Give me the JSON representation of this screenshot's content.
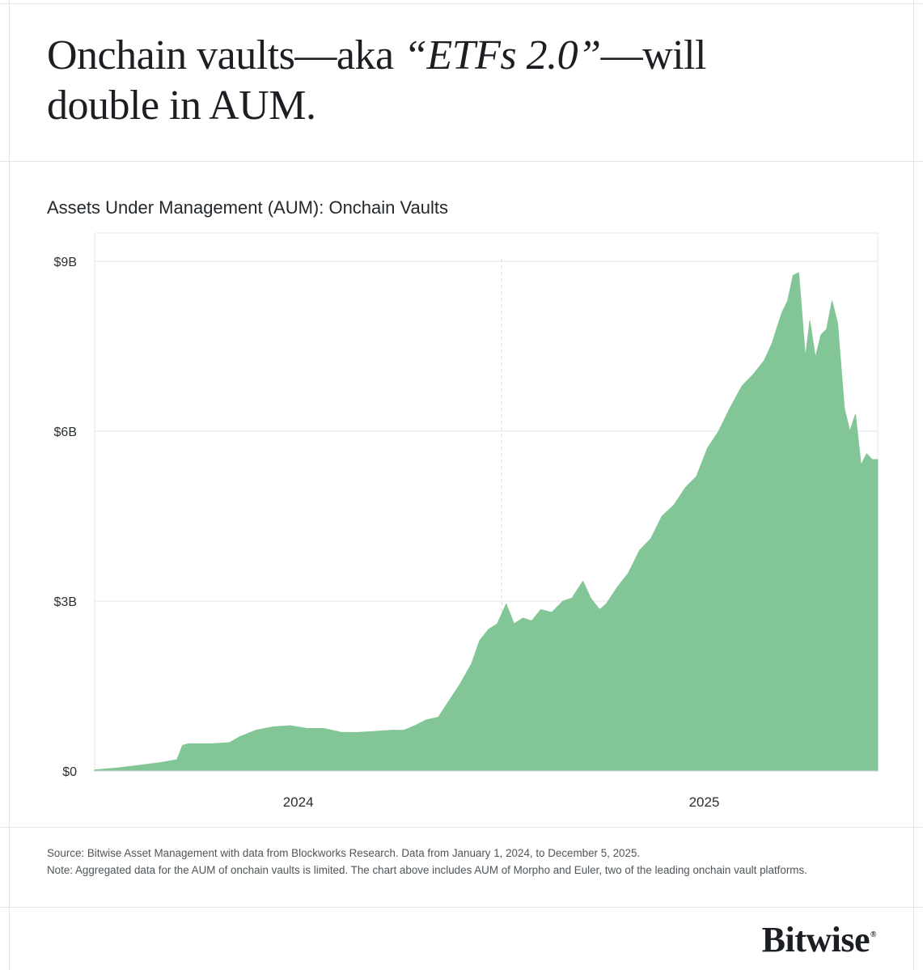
{
  "headline": {
    "part1": "Onchain vaults—aka ",
    "emphasis": "“ETFs 2.0”",
    "part2": "—will double in AUM."
  },
  "chart_title": "Assets Under Management (AUM): Onchain Vaults",
  "chart_data": {
    "type": "area",
    "title": "Assets Under Management (AUM): Onchain Vaults",
    "xlabel": "",
    "ylabel": "",
    "y_unit": "billions USD",
    "x_range": [
      "2024-01-01",
      "2025-12-05"
    ],
    "ylim": [
      0,
      9.5
    ],
    "y_ticks": [
      0,
      3,
      6,
      9
    ],
    "y_tick_labels": [
      "$0",
      "$3B",
      "$6B",
      "$9B"
    ],
    "x_tick_labels": [
      {
        "date": "2024-07-02",
        "label": "2024"
      },
      {
        "date": "2025-07-02",
        "label": "2025"
      }
    ],
    "year_divider_date": "2025-01-01",
    "grid": true,
    "legend": "none",
    "color": "#82c597",
    "series": [
      {
        "x": [
          "2024-01-01",
          "2024-01-20",
          "2024-02-10",
          "2024-03-01",
          "2024-03-15",
          "2024-03-20",
          "2024-03-25",
          "2024-04-15",
          "2024-05-01",
          "2024-05-10",
          "2024-05-25",
          "2024-06-10",
          "2024-06-25",
          "2024-07-10",
          "2024-07-25",
          "2024-08-10",
          "2024-08-25",
          "2024-09-10",
          "2024-09-25",
          "2024-10-05",
          "2024-10-15",
          "2024-10-25",
          "2024-11-05",
          "2024-11-15",
          "2024-11-25",
          "2024-12-05",
          "2024-12-12",
          "2024-12-20",
          "2024-12-28",
          "2025-01-05",
          "2025-01-12",
          "2025-01-20",
          "2025-01-28",
          "2025-02-05",
          "2025-02-15",
          "2025-02-25",
          "2025-03-05",
          "2025-03-15",
          "2025-03-22",
          "2025-03-30",
          "2025-04-05",
          "2025-04-15",
          "2025-04-25",
          "2025-05-05",
          "2025-05-15",
          "2025-05-25",
          "2025-06-05",
          "2025-06-15",
          "2025-06-25",
          "2025-07-05",
          "2025-07-15",
          "2025-07-25",
          "2025-08-05",
          "2025-08-15",
          "2025-08-25",
          "2025-09-01",
          "2025-09-05",
          "2025-09-10",
          "2025-09-15",
          "2025-09-20",
          "2025-09-25",
          "2025-10-01",
          "2025-10-05",
          "2025-10-10",
          "2025-10-15",
          "2025-10-20",
          "2025-10-25",
          "2025-10-30",
          "2025-11-05",
          "2025-11-10",
          "2025-11-15",
          "2025-11-20",
          "2025-11-25",
          "2025-11-30",
          "2025-12-05"
        ],
        "values": [
          0.02,
          0.05,
          0.1,
          0.15,
          0.2,
          0.45,
          0.48,
          0.48,
          0.5,
          0.6,
          0.72,
          0.78,
          0.8,
          0.75,
          0.75,
          0.68,
          0.68,
          0.7,
          0.72,
          0.72,
          0.8,
          0.9,
          0.95,
          1.25,
          1.55,
          1.9,
          2.3,
          2.5,
          2.6,
          2.95,
          2.6,
          2.7,
          2.65,
          2.85,
          2.8,
          3.0,
          3.05,
          3.35,
          3.05,
          2.85,
          2.95,
          3.25,
          3.5,
          3.9,
          4.1,
          4.5,
          4.7,
          5.0,
          5.2,
          5.7,
          6.0,
          6.4,
          6.8,
          7.0,
          7.25,
          7.55,
          7.8,
          8.1,
          8.3,
          8.75,
          8.8,
          7.3,
          7.95,
          7.3,
          7.7,
          7.8,
          8.3,
          7.9,
          6.4,
          6.0,
          6.3,
          5.4,
          5.6,
          5.5,
          5.5
        ]
      }
    ]
  },
  "footnotes": {
    "source": "Source: Bitwise Asset Management with data from Blockworks Research. Data from January 1, 2024, to December 5, 2025.",
    "note": "Note: Aggregated data for the AUM of onchain vaults is limited. The chart above includes AUM of Morpho and Euler, two of the leading onchain vault platforms."
  },
  "logo": {
    "text": "Bitwise",
    "mark": "®"
  }
}
